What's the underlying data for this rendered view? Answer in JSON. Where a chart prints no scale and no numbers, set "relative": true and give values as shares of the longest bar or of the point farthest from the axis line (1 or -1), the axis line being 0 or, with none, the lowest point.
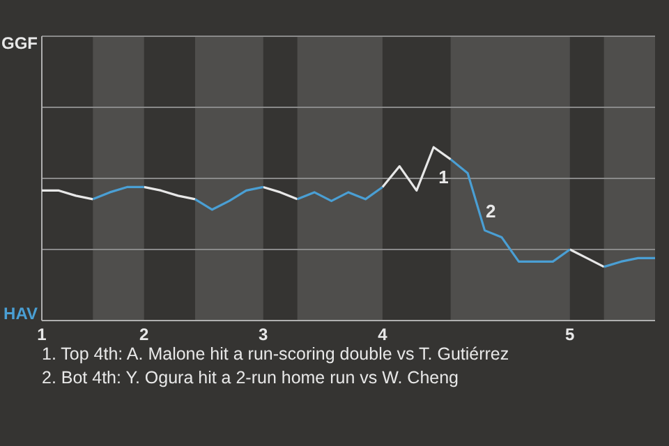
{
  "chart_data": {
    "type": "line",
    "relative": true,
    "categories": [
      "1",
      null,
      null,
      null,
      null,
      null,
      "2",
      null,
      null,
      null,
      null,
      null,
      null,
      "3",
      null,
      null,
      null,
      null,
      null,
      null,
      "4",
      null,
      null,
      null,
      null,
      null,
      null,
      null,
      null,
      null,
      null,
      "5",
      null,
      null,
      null,
      null,
      null
    ],
    "series": [
      {
        "name": "GGF",
        "color": "#e8e8e8",
        "values": [
          0.75,
          0.75,
          0.72,
          0.7,
          null,
          null,
          0.77,
          0.75,
          0.72,
          0.7,
          null,
          null,
          null,
          0.77,
          0.74,
          0.7,
          null,
          null,
          null,
          null,
          0.77,
          0.89,
          0.75,
          1,
          0.93,
          null,
          null,
          null,
          null,
          null,
          null,
          0.41,
          0.36,
          0.31,
          null,
          null,
          null
        ]
      },
      {
        "name": "HAV",
        "color": "#4a9fd4",
        "values": [
          null,
          null,
          null,
          0.7,
          0.74,
          0.77,
          0.77,
          null,
          null,
          0.7,
          0.64,
          0.69,
          0.75,
          0.77,
          null,
          0.7,
          0.74,
          0.69,
          0.74,
          0.7,
          0.77,
          null,
          null,
          null,
          0.93,
          0.85,
          0.52,
          0.48,
          0.34,
          0.34,
          0.34,
          0.41,
          null,
          0.31,
          0.34,
          0.36,
          0.36
        ]
      }
    ],
    "ref_lines": [
      {
        "axis": "y",
        "value": 0.41,
        "color": "#8a8a8a"
      },
      {
        "axis": "y",
        "value": 0.82,
        "color": "#8a8a8a"
      },
      {
        "axis": "y",
        "value": 1.23,
        "color": "#8a8a8a"
      },
      {
        "axis": "y",
        "value": 1.64,
        "color": "#8a8a8a"
      }
    ],
    "annotations": [
      "1",
      "2",
      "1. Top 4th: A. Malone hit a run-scoring double vs T. Gutiérrez",
      "2. Bot 4th: Y. Ogura hit a 2-run home run vs W. Cheng"
    ]
  }
}
